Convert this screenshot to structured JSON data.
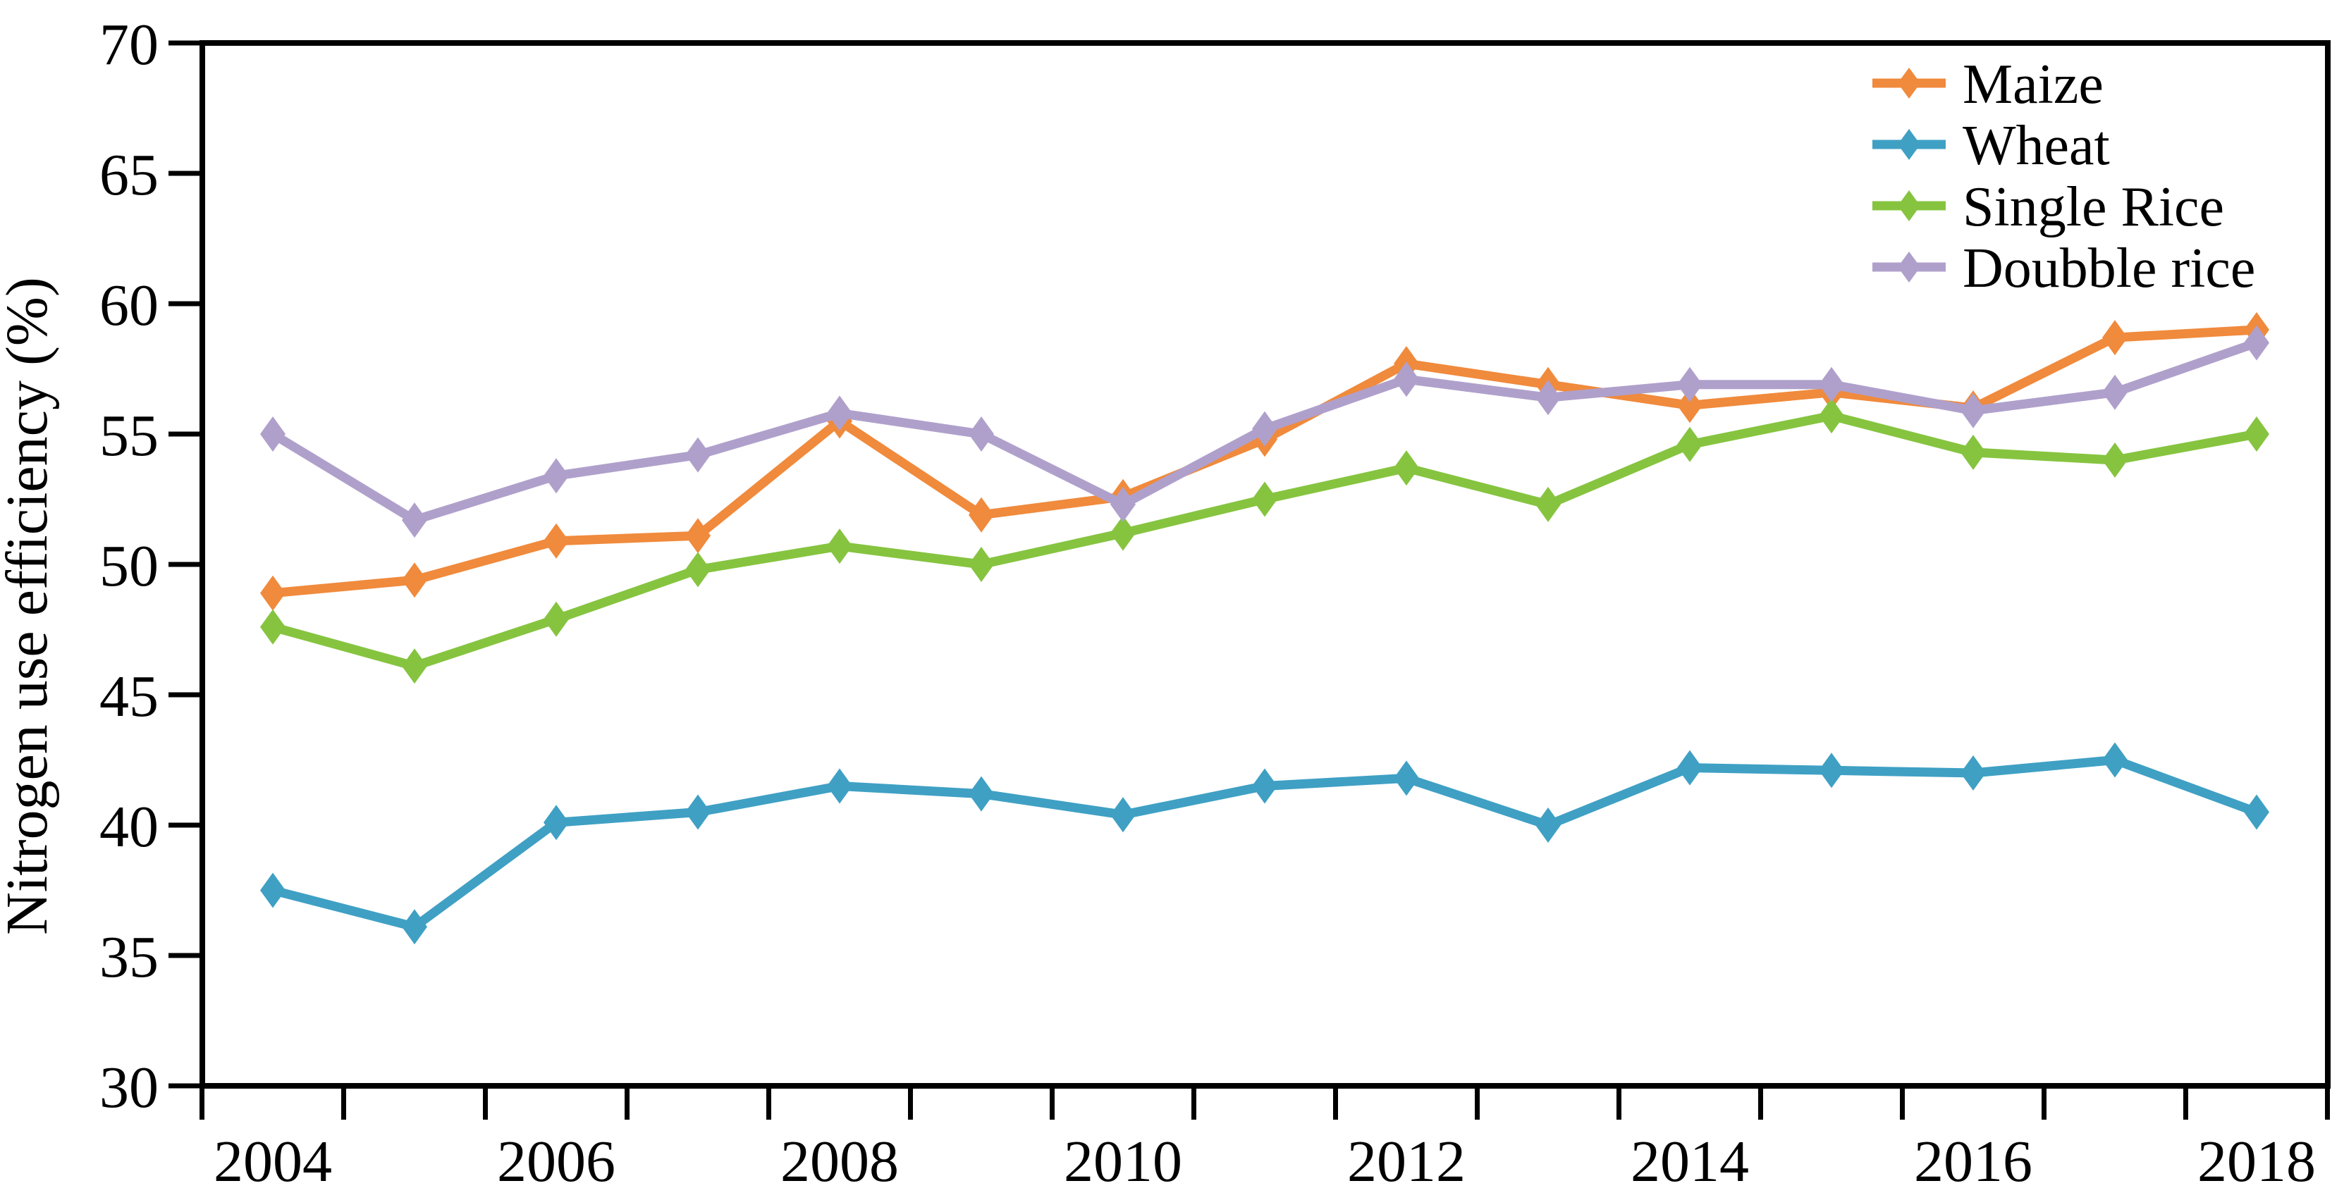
{
  "chart_data": {
    "type": "line",
    "title": "",
    "xlabel": "",
    "ylabel": "Nitrogen use efficiency (%)",
    "ylim": [
      30,
      70
    ],
    "y_ticks": [
      30,
      35,
      40,
      45,
      50,
      55,
      60,
      65,
      70
    ],
    "y_tick_labels": [
      "30",
      "35",
      "40",
      "45",
      "50",
      "55",
      "60",
      "65",
      "70"
    ],
    "x": [
      2004,
      2005,
      2006,
      2007,
      2008,
      2009,
      2010,
      2011,
      2012,
      2013,
      2014,
      2015,
      2016,
      2017,
      2018
    ],
    "x_tick_labels": [
      "2004",
      "2006",
      "2008",
      "2010",
      "2012",
      "2014",
      "2016",
      "2018"
    ],
    "grid": false,
    "legend_position": "top-right",
    "marker": "diamond",
    "series": [
      {
        "name": "Maize",
        "color": "#F08A3C",
        "values": [
          48.9,
          49.4,
          50.9,
          51.1,
          55.5,
          51.9,
          52.6,
          54.8,
          57.7,
          56.9,
          56.1,
          56.6,
          56.0,
          58.7,
          59.0
        ]
      },
      {
        "name": "Wheat",
        "color": "#3FA0C4",
        "values": [
          37.5,
          36.1,
          40.1,
          40.5,
          41.5,
          41.2,
          40.4,
          41.5,
          41.8,
          40.0,
          42.2,
          42.1,
          42.0,
          42.5,
          40.5
        ]
      },
      {
        "name": "Single Rice",
        "color": "#86C440",
        "values": [
          47.6,
          46.1,
          47.9,
          49.8,
          50.7,
          50.0,
          51.2,
          52.5,
          53.7,
          52.3,
          54.6,
          55.7,
          54.3,
          54.0,
          55.0
        ]
      },
      {
        "name": "Doubble rice",
        "color": "#AFA0CB",
        "values": [
          55.0,
          51.7,
          53.4,
          54.2,
          55.8,
          55.0,
          52.3,
          55.2,
          57.1,
          56.4,
          56.9,
          56.9,
          55.9,
          56.6,
          58.5
        ]
      }
    ]
  }
}
